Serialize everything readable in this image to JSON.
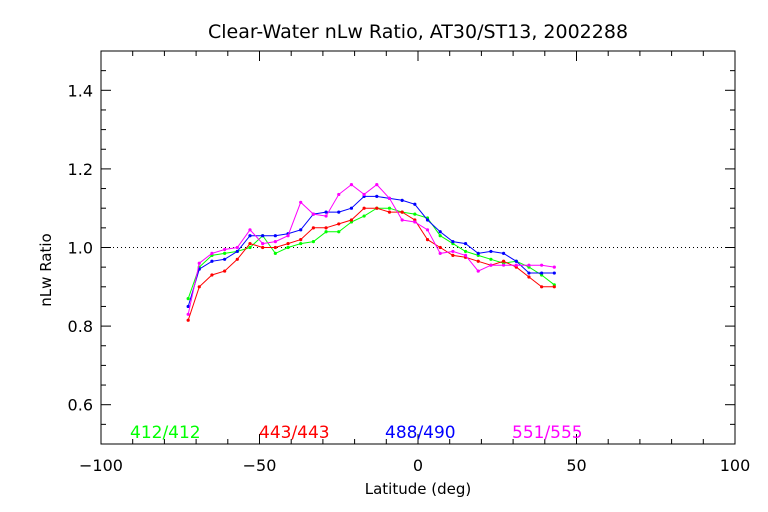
{
  "chart_data": {
    "type": "line",
    "title": "Clear-Water nLw Ratio, AT30/ST13, 2002288",
    "xlabel": "Latitude (deg)",
    "ylabel": "nLw Ratio",
    "xlim": [
      -100,
      100
    ],
    "ylim": [
      0.5,
      1.5
    ],
    "xticks": [
      -100,
      -50,
      0,
      50,
      100
    ],
    "xtick_labels": [
      "−100",
      "−50",
      "0",
      "50",
      "100"
    ],
    "yticks": [
      0.6,
      0.8,
      1.0,
      1.2,
      1.4
    ],
    "ytick_labels": [
      "0.6",
      "0.8",
      "1.0",
      "1.2",
      "1.4"
    ],
    "reference_line": 1.0,
    "grid": false,
    "legend_position": "bottom-inside",
    "x": [
      -72.5,
      -69,
      -65,
      -61,
      -57,
      -53,
      -49,
      -45,
      -41,
      -37,
      -33,
      -29,
      -25,
      -21,
      -17,
      -13,
      -9,
      -5,
      -1,
      3,
      7,
      11,
      15,
      19,
      23,
      27,
      31,
      35,
      39,
      43
    ],
    "series": [
      {
        "name": "412/412",
        "color": "#00ff00",
        "values": [
          0.87,
          0.95,
          0.98,
          0.985,
          0.99,
          1.0,
          1.03,
          0.985,
          1.0,
          1.01,
          1.015,
          1.04,
          1.04,
          1.065,
          1.08,
          1.1,
          1.1,
          1.09,
          1.085,
          1.075,
          1.03,
          1.01,
          0.99,
          0.98,
          0.97,
          0.96,
          0.965,
          0.95,
          0.93,
          0.905
        ]
      },
      {
        "name": "443/443",
        "color": "#ff0000",
        "values": [
          0.815,
          0.9,
          0.93,
          0.94,
          0.97,
          1.01,
          1.0,
          1.0,
          1.01,
          1.02,
          1.05,
          1.05,
          1.06,
          1.07,
          1.1,
          1.1,
          1.09,
          1.09,
          1.07,
          1.02,
          1.0,
          0.98,
          0.975,
          0.965,
          0.955,
          0.965,
          0.95,
          0.925,
          0.9,
          0.9
        ]
      },
      {
        "name": "488/490",
        "color": "#0000ff",
        "values": [
          0.85,
          0.945,
          0.965,
          0.97,
          0.99,
          1.03,
          1.03,
          1.03,
          1.035,
          1.045,
          1.085,
          1.09,
          1.09,
          1.1,
          1.13,
          1.13,
          1.125,
          1.12,
          1.11,
          1.07,
          1.04,
          1.015,
          1.01,
          0.985,
          0.99,
          0.985,
          0.965,
          0.935,
          0.935,
          0.935
        ]
      },
      {
        "name": "551/555",
        "color": "#ff00ff",
        "values": [
          0.83,
          0.96,
          0.985,
          0.995,
          1.0,
          1.045,
          1.01,
          1.015,
          1.03,
          1.115,
          1.085,
          1.08,
          1.135,
          1.16,
          1.135,
          1.16,
          1.125,
          1.07,
          1.065,
          1.045,
          0.985,
          0.99,
          0.98,
          0.94,
          0.955,
          0.955,
          0.955,
          0.955,
          0.955,
          0.95
        ]
      }
    ]
  }
}
